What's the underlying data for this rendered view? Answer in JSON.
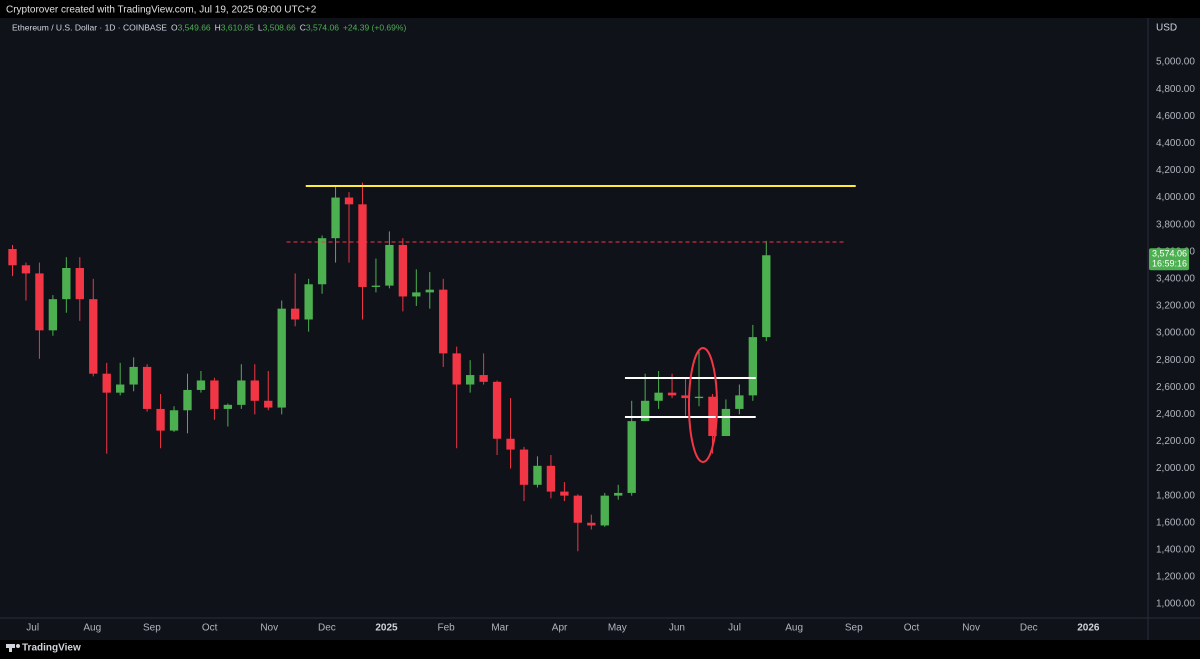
{
  "header": "Cryptorover created with TradingView.com, Jul 19, 2025 09:00 UTC+2",
  "footer": "TradingView",
  "chart_data": {
    "type": "candlestick",
    "legend": {
      "symbol": "Ethereum / U.S. Dollar · 1D · COINBASE",
      "ohlc": [
        {
          "key": "O",
          "value": "3,549.66"
        },
        {
          "key": "H",
          "value": "3,610.85"
        },
        {
          "key": "L",
          "value": "3,508.66"
        },
        {
          "key": "C",
          "value": "3,574.06"
        }
      ],
      "change": "+24.39 (+0.69%)"
    },
    "currency": "USD",
    "price_label": {
      "value": 3574.06,
      "label": "3,574.06",
      "countdown": "16:59:16"
    },
    "up_color": "#4caf50",
    "down_color": "#f23645",
    "x": [
      "2024-06-17",
      "2024-06-24",
      "2024-07-01",
      "2024-07-08",
      "2024-07-15",
      "2024-07-22",
      "2024-07-29",
      "2024-08-05",
      "2024-08-12",
      "2024-08-19",
      "2024-08-26",
      "2024-09-02",
      "2024-09-09",
      "2024-09-16",
      "2024-09-23",
      "2024-09-30",
      "2024-10-07",
      "2024-10-14",
      "2024-10-21",
      "2024-10-28",
      "2024-11-04",
      "2024-11-11",
      "2024-11-18",
      "2024-11-25",
      "2024-12-02",
      "2024-12-09",
      "2024-12-16",
      "2024-12-23",
      "2024-12-30",
      "2025-01-06",
      "2025-01-13",
      "2025-01-20",
      "2025-01-27",
      "2025-02-03",
      "2025-02-10",
      "2025-02-17",
      "2025-02-24",
      "2025-03-03",
      "2025-03-10",
      "2025-03-17",
      "2025-03-24",
      "2025-03-31",
      "2025-04-07",
      "2025-04-14",
      "2025-04-21",
      "2025-04-28",
      "2025-05-05",
      "2025-05-12",
      "2025-05-19",
      "2025-05-26",
      "2025-06-02",
      "2025-06-09",
      "2025-06-16",
      "2025-06-23",
      "2025-06-30",
      "2025-07-07",
      "2025-07-14"
    ],
    "open": [
      3620,
      3500,
      3440,
      3020,
      3250,
      3480,
      3250,
      2700,
      2560,
      2620,
      2750,
      2440,
      2280,
      2430,
      2580,
      2650,
      2440,
      2470,
      2650,
      2500,
      2450,
      3180,
      3100,
      3360,
      3700,
      4000,
      3950,
      3340,
      3350,
      3650,
      3270,
      3300,
      3320,
      2850,
      2620,
      2690,
      2640,
      2220,
      2140,
      1880,
      2020,
      1830,
      1800,
      1600,
      1580,
      1800,
      1820,
      2350,
      2500,
      2560,
      2540,
      2520,
      2530,
      2240,
      2440,
      2540,
      2970
    ],
    "high": [
      3650,
      3520,
      3520,
      3280,
      3560,
      3560,
      3400,
      2780,
      2780,
      2820,
      2770,
      2550,
      2460,
      2700,
      2720,
      2670,
      2480,
      2770,
      2770,
      2720,
      3240,
      3440,
      3400,
      3720,
      4090,
      4040,
      4110,
      3550,
      3750,
      3700,
      3470,
      3450,
      3400,
      2900,
      2800,
      2850,
      2650,
      2520,
      2160,
      2090,
      2100,
      1900,
      1810,
      1660,
      1820,
      1880,
      2500,
      2700,
      2720,
      2700,
      2670,
      2880,
      2550,
      2510,
      2620,
      3060,
      3680
    ],
    "low": [
      3420,
      3240,
      2810,
      2980,
      3150,
      3090,
      2680,
      2110,
      2540,
      2570,
      2420,
      2150,
      2270,
      2260,
      2560,
      2360,
      2310,
      2440,
      2400,
      2430,
      2400,
      3050,
      3010,
      3290,
      3520,
      3520,
      3100,
      3300,
      3330,
      3160,
      3200,
      3180,
      2750,
      2150,
      2560,
      2620,
      2100,
      2000,
      1760,
      1860,
      1780,
      1760,
      1390,
      1550,
      1570,
      1770,
      1800,
      2360,
      2440,
      2520,
      2390,
      2460,
      2110,
      2240,
      2400,
      2500,
      2940
    ],
    "close": [
      3500,
      3440,
      3020,
      3250,
      3480,
      3250,
      2700,
      2560,
      2620,
      2750,
      2440,
      2280,
      2430,
      2580,
      2650,
      2440,
      2470,
      2650,
      2500,
      2450,
      3180,
      3100,
      3360,
      3700,
      4000,
      3950,
      3340,
      3350,
      3650,
      3270,
      3300,
      3320,
      2850,
      2620,
      2690,
      2640,
      2220,
      2140,
      1880,
      2020,
      1830,
      1800,
      1600,
      1580,
      1800,
      1820,
      2350,
      2500,
      2560,
      2540,
      2520,
      2530,
      2240,
      2440,
      2540,
      2970,
      3574
    ],
    "xlim": [
      "2024-06-14",
      "2026-02-01"
    ],
    "xticks": [
      {
        "value": "2024-07-01",
        "label": "Jul"
      },
      {
        "value": "2024-08-01",
        "label": "Aug"
      },
      {
        "value": "2024-09-01",
        "label": "Sep"
      },
      {
        "value": "2024-10-01",
        "label": "Oct"
      },
      {
        "value": "2024-11-01",
        "label": "Nov"
      },
      {
        "value": "2024-12-01",
        "label": "Dec"
      },
      {
        "value": "2025-01-01",
        "label": "2025"
      },
      {
        "value": "2025-02-01",
        "label": "Feb"
      },
      {
        "value": "2025-03-01",
        "label": "Mar"
      },
      {
        "value": "2025-04-01",
        "label": "Apr"
      },
      {
        "value": "2025-05-01",
        "label": "May"
      },
      {
        "value": "2025-06-01",
        "label": "Jun"
      },
      {
        "value": "2025-07-01",
        "label": "Jul"
      },
      {
        "value": "2025-08-01",
        "label": "Aug"
      },
      {
        "value": "2025-09-01",
        "label": "Sep"
      },
      {
        "value": "2025-10-01",
        "label": "Oct"
      },
      {
        "value": "2025-11-01",
        "label": "Nov"
      },
      {
        "value": "2025-12-01",
        "label": "Dec"
      },
      {
        "value": "2026-01-01",
        "label": "2026"
      }
    ],
    "ylim": [
      897,
      5325
    ],
    "yticks": [
      {
        "value": 1000,
        "label": "1,000.00"
      },
      {
        "value": 1200,
        "label": "1,200.00"
      },
      {
        "value": 1400,
        "label": "1,400.00"
      },
      {
        "value": 1600,
        "label": "1,600.00"
      },
      {
        "value": 1800,
        "label": "1,800.00"
      },
      {
        "value": 2000,
        "label": "2,000.00"
      },
      {
        "value": 2200,
        "label": "2,200.00"
      },
      {
        "value": 2400,
        "label": "2,400.00"
      },
      {
        "value": 2600,
        "label": "2,600.00"
      },
      {
        "value": 2800,
        "label": "2,800.00"
      },
      {
        "value": 3000,
        "label": "3,000.00"
      },
      {
        "value": 3200,
        "label": "3,200.00"
      },
      {
        "value": 3400,
        "label": "3,400.00"
      },
      {
        "value": 3600,
        "label": "3,600.00"
      },
      {
        "value": 3800,
        "label": "3,800.00"
      },
      {
        "value": 4000,
        "label": "4,000.00"
      },
      {
        "value": 4200,
        "label": "4,200.00"
      },
      {
        "value": 4400,
        "label": "4,400.00"
      },
      {
        "value": 4600,
        "label": "4,600.00"
      },
      {
        "value": 4800,
        "label": "4,800.00"
      },
      {
        "value": 5000,
        "label": "5,000.00"
      }
    ],
    "drawings": [
      {
        "price": 4085,
        "from": "2024-11-20",
        "to": "2025-09-02",
        "color": "#ffeb3b",
        "dashed": false
      },
      {
        "price": 3672,
        "from": "2024-11-10",
        "to": "2025-08-28",
        "color": "#f23645",
        "dashed": true
      },
      {
        "price": 2668,
        "from": "2025-05-05",
        "to": "2025-07-12",
        "color": "#ffffff",
        "dashed": false
      },
      {
        "price": 2380,
        "from": "2025-05-05",
        "to": "2025-07-12",
        "color": "#ffffff",
        "dashed": false
      }
    ]
  }
}
